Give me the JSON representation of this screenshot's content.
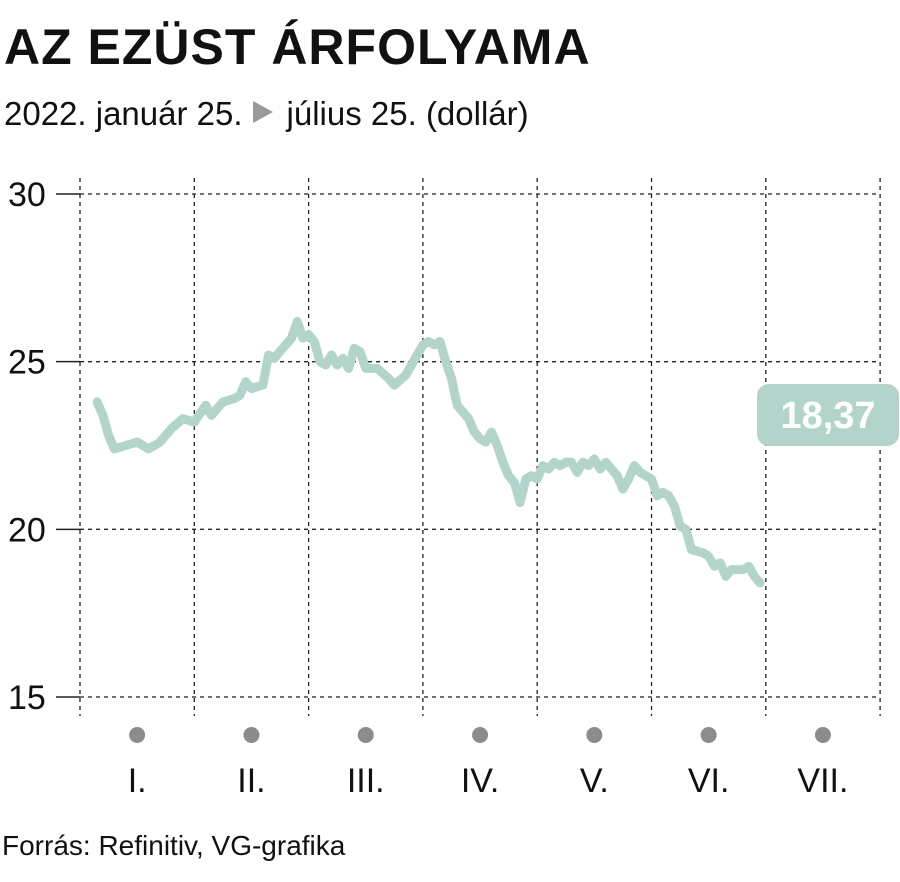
{
  "header": {
    "title": "AZ EZÜST ÁRFOLYAMA",
    "subtitle_start": "2022. január 25.",
    "subtitle_end": "július 25. (dollár)"
  },
  "footer": {
    "source": "Forrás: Refinitiv, VG-grafika"
  },
  "colors": {
    "line": "#b2d4cb",
    "badge": "#b2d4cb",
    "grid": "#222222",
    "month_dot": "#8c8c8c",
    "arrow": "#9a9a9a"
  },
  "chart_data": {
    "type": "line",
    "title": "AZ EZÜST ÁRFOLYAMA",
    "ylim": [
      15,
      30
    ],
    "yticks": [
      30,
      25,
      20,
      15
    ],
    "grid": true,
    "months": [
      "I.",
      "II.",
      "III.",
      "IV.",
      "V.",
      "VI.",
      "VII."
    ],
    "last_value_label": "18,37",
    "series": [
      {
        "values": [
          [
            0.15,
            23.8
          ],
          [
            0.2,
            23.4
          ],
          [
            0.25,
            22.8
          ],
          [
            0.3,
            22.4
          ],
          [
            0.4,
            22.5
          ],
          [
            0.5,
            22.6
          ],
          [
            0.6,
            22.4
          ],
          [
            0.7,
            22.6
          ],
          [
            0.8,
            23.0
          ],
          [
            0.9,
            23.3
          ],
          [
            1.0,
            23.2
          ],
          [
            1.1,
            23.7
          ],
          [
            1.15,
            23.4
          ],
          [
            1.25,
            23.8
          ],
          [
            1.35,
            23.9
          ],
          [
            1.4,
            24.0
          ],
          [
            1.45,
            24.4
          ],
          [
            1.5,
            24.2
          ],
          [
            1.6,
            24.3
          ],
          [
            1.65,
            25.2
          ],
          [
            1.7,
            25.1
          ],
          [
            1.75,
            25.3
          ],
          [
            1.8,
            25.5
          ],
          [
            1.85,
            25.7
          ],
          [
            1.9,
            26.2
          ],
          [
            1.95,
            25.7
          ],
          [
            2.0,
            25.8
          ],
          [
            2.05,
            25.6
          ],
          [
            2.1,
            25.0
          ],
          [
            2.15,
            24.9
          ],
          [
            2.2,
            25.2
          ],
          [
            2.25,
            24.9
          ],
          [
            2.3,
            25.1
          ],
          [
            2.35,
            24.8
          ],
          [
            2.4,
            25.4
          ],
          [
            2.45,
            25.3
          ],
          [
            2.5,
            24.8
          ],
          [
            2.6,
            24.8
          ],
          [
            2.7,
            24.5
          ],
          [
            2.75,
            24.3
          ],
          [
            2.85,
            24.6
          ],
          [
            3.0,
            25.5
          ],
          [
            3.05,
            25.6
          ],
          [
            3.1,
            25.5
          ],
          [
            3.15,
            25.6
          ],
          [
            3.2,
            25.0
          ],
          [
            3.25,
            24.5
          ],
          [
            3.3,
            23.7
          ],
          [
            3.4,
            23.3
          ],
          [
            3.45,
            22.9
          ],
          [
            3.5,
            22.7
          ],
          [
            3.55,
            22.6
          ],
          [
            3.6,
            22.9
          ],
          [
            3.65,
            22.5
          ],
          [
            3.7,
            22.0
          ],
          [
            3.75,
            21.6
          ],
          [
            3.8,
            21.4
          ],
          [
            3.85,
            20.8
          ],
          [
            3.9,
            21.5
          ],
          [
            3.95,
            21.6
          ],
          [
            4.0,
            21.5
          ],
          [
            4.05,
            21.9
          ],
          [
            4.1,
            21.8
          ],
          [
            4.15,
            22.0
          ],
          [
            4.2,
            21.9
          ],
          [
            4.25,
            22.0
          ],
          [
            4.3,
            22.0
          ],
          [
            4.35,
            21.7
          ],
          [
            4.4,
            22.0
          ],
          [
            4.45,
            21.9
          ],
          [
            4.5,
            22.1
          ],
          [
            4.55,
            21.8
          ],
          [
            4.6,
            22.0
          ],
          [
            4.65,
            21.8
          ],
          [
            4.7,
            21.6
          ],
          [
            4.75,
            21.2
          ],
          [
            4.8,
            21.5
          ],
          [
            4.85,
            21.9
          ],
          [
            4.9,
            21.7
          ],
          [
            4.95,
            21.6
          ],
          [
            5.0,
            21.5
          ],
          [
            5.05,
            21.0
          ],
          [
            5.1,
            21.1
          ],
          [
            5.15,
            21.0
          ],
          [
            5.2,
            20.7
          ],
          [
            5.25,
            20.1
          ],
          [
            5.3,
            20.0
          ],
          [
            5.35,
            19.4
          ],
          [
            5.45,
            19.3
          ],
          [
            5.5,
            19.2
          ],
          [
            5.55,
            18.9
          ],
          [
            5.6,
            19.0
          ],
          [
            5.65,
            18.6
          ],
          [
            5.7,
            18.8
          ],
          [
            5.8,
            18.8
          ],
          [
            5.85,
            18.9
          ],
          [
            5.9,
            18.6
          ],
          [
            5.95,
            18.4
          ]
        ]
      }
    ]
  }
}
